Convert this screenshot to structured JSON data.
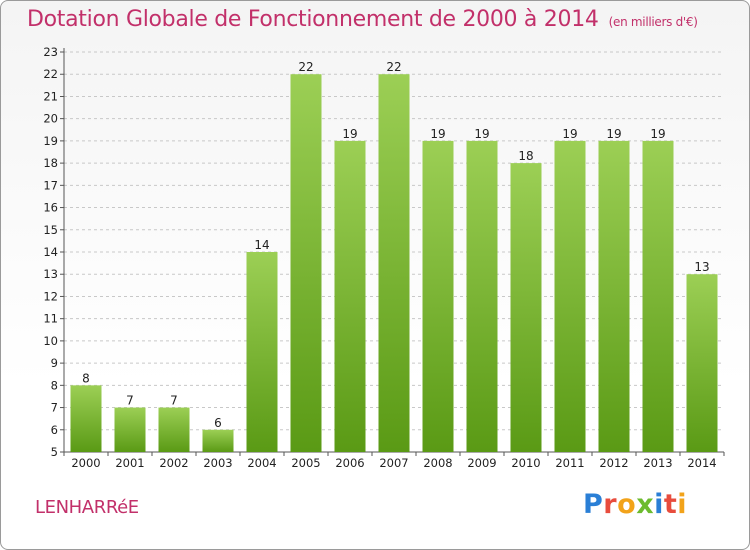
{
  "title": "Dotation Globale de Fonctionnement de 2000 à 2014",
  "unit_note": "(en milliers d'€)",
  "commune": "LENHARRéE",
  "logo": {
    "letters": [
      {
        "char": "P",
        "color": "#2a7fd6"
      },
      {
        "char": "r",
        "color": "#e84c3d"
      },
      {
        "char": "o",
        "color": "#f2a31a"
      },
      {
        "char": "x",
        "color": "#6cbb2e"
      },
      {
        "char": "i",
        "color": "#2a7fd6"
      },
      {
        "char": "t",
        "color": "#e84c3d"
      },
      {
        "char": "i",
        "color": "#f2a31a"
      }
    ]
  },
  "colors": {
    "bar_top": "#9ccf55",
    "bar_bottom": "#5a9a15",
    "grid": "#c8c8c8",
    "title": "#c2306a"
  },
  "chart_data": {
    "type": "bar",
    "title": "Dotation Globale de Fonctionnement de 2000 à 2014",
    "xlabel": "",
    "ylabel": "",
    "categories": [
      "2000",
      "2001",
      "2002",
      "2003",
      "2004",
      "2005",
      "2006",
      "2007",
      "2008",
      "2009",
      "2010",
      "2011",
      "2012",
      "2013",
      "2014"
    ],
    "values": [
      8,
      7,
      7,
      6,
      14,
      22,
      19,
      22,
      19,
      19,
      18,
      19,
      19,
      19,
      13
    ],
    "ylim": [
      5,
      23
    ],
    "yticks": [
      5,
      6,
      7,
      8,
      9,
      10,
      11,
      12,
      13,
      14,
      15,
      16,
      17,
      18,
      19,
      20,
      21,
      22,
      23
    ],
    "grid": true,
    "data_labels": true
  }
}
